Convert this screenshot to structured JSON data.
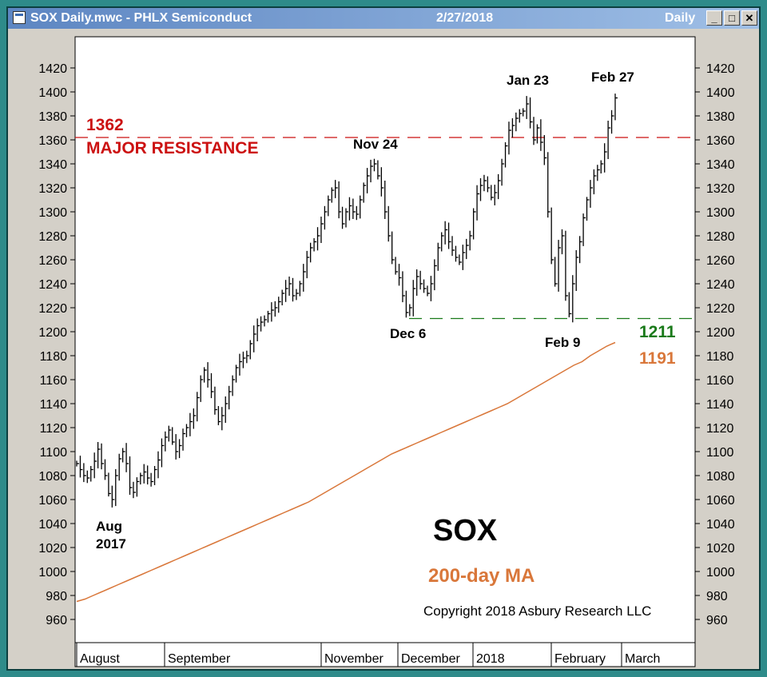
{
  "window": {
    "title": "SOX Daily.mwc - PHLX Semiconduct",
    "date": "2/27/2018",
    "period": "Daily",
    "minimize_label": "_",
    "maximize_label": "□",
    "close_label": "✕"
  },
  "chart_data": {
    "type": "ohlc",
    "title": "SOX",
    "ma_label": "200-day MA",
    "copyright": "Copyright 2018 Asbury Research LLC",
    "ylim": [
      945,
      1435
    ],
    "yticks": [
      960,
      980,
      1000,
      1020,
      1040,
      1060,
      1080,
      1100,
      1120,
      1140,
      1160,
      1180,
      1200,
      1220,
      1240,
      1260,
      1280,
      1300,
      1320,
      1340,
      1360,
      1380,
      1400,
      1420
    ],
    "x_labels": [
      "August",
      "September",
      "November",
      "December",
      "2018",
      "February",
      "March"
    ],
    "colors": {
      "price": "#000000",
      "resistance": "#cc1111",
      "support": "#1a7a1a",
      "ma": "#d9773a"
    },
    "resistance": {
      "value": 1362,
      "label_value": "1362",
      "label_text": "MAJOR RESISTANCE"
    },
    "support": {
      "value": 1211,
      "label": "1211"
    },
    "ma_end_label": "1191",
    "annotations": [
      {
        "text": "Aug",
        "text2": "2017"
      },
      {
        "text": "Nov 24"
      },
      {
        "text": "Dec 6"
      },
      {
        "text": "Jan 23"
      },
      {
        "text": "Feb 9"
      },
      {
        "text": "Feb 27"
      }
    ],
    "price_closes": [
      1090,
      1085,
      1080,
      1078,
      1085,
      1092,
      1102,
      1090,
      1080,
      1065,
      1060,
      1080,
      1094,
      1100,
      1090,
      1070,
      1066,
      1075,
      1080,
      1083,
      1078,
      1075,
      1085,
      1093,
      1105,
      1112,
      1118,
      1108,
      1100,
      1105,
      1115,
      1120,
      1125,
      1130,
      1145,
      1160,
      1168,
      1160,
      1150,
      1135,
      1125,
      1130,
      1140,
      1150,
      1160,
      1170,
      1175,
      1178,
      1180,
      1190,
      1198,
      1205,
      1208,
      1210,
      1215,
      1218,
      1220,
      1225,
      1232,
      1236,
      1240,
      1230,
      1232,
      1240,
      1250,
      1262,
      1270,
      1275,
      1280,
      1290,
      1300,
      1310,
      1318,
      1320,
      1300,
      1290,
      1300,
      1305,
      1300,
      1298,
      1310,
      1322,
      1330,
      1338,
      1340,
      1330,
      1320,
      1300,
      1280,
      1260,
      1250,
      1245,
      1230,
      1216,
      1220,
      1236,
      1246,
      1240,
      1236,
      1232,
      1240,
      1255,
      1270,
      1280,
      1285,
      1275,
      1268,
      1262,
      1258,
      1266,
      1272,
      1280,
      1300,
      1315,
      1322,
      1326,
      1320,
      1312,
      1316,
      1326,
      1340,
      1355,
      1368,
      1372,
      1378,
      1382,
      1384,
      1390,
      1375,
      1360,
      1370,
      1358,
      1345,
      1300,
      1260,
      1240,
      1270,
      1280,
      1230,
      1215,
      1240,
      1262,
      1275,
      1295,
      1310,
      1320,
      1330,
      1335,
      1340,
      1350,
      1370,
      1380,
      1395
    ],
    "ma_values": [
      975,
      977,
      980,
      983,
      986,
      989,
      992,
      995,
      998,
      1001,
      1004,
      1007,
      1010,
      1013,
      1016,
      1019,
      1022,
      1025,
      1028,
      1031,
      1034,
      1037,
      1040,
      1043,
      1046,
      1049,
      1052,
      1055,
      1058,
      1062,
      1066,
      1070,
      1074,
      1078,
      1082,
      1086,
      1090,
      1094,
      1098,
      1101,
      1104,
      1107,
      1110,
      1113,
      1116,
      1119,
      1122,
      1125,
      1128,
      1131,
      1134,
      1137,
      1140,
      1144,
      1148,
      1152,
      1156,
      1160,
      1164,
      1168,
      1172,
      1175,
      1180,
      1184,
      1188,
      1191
    ]
  }
}
